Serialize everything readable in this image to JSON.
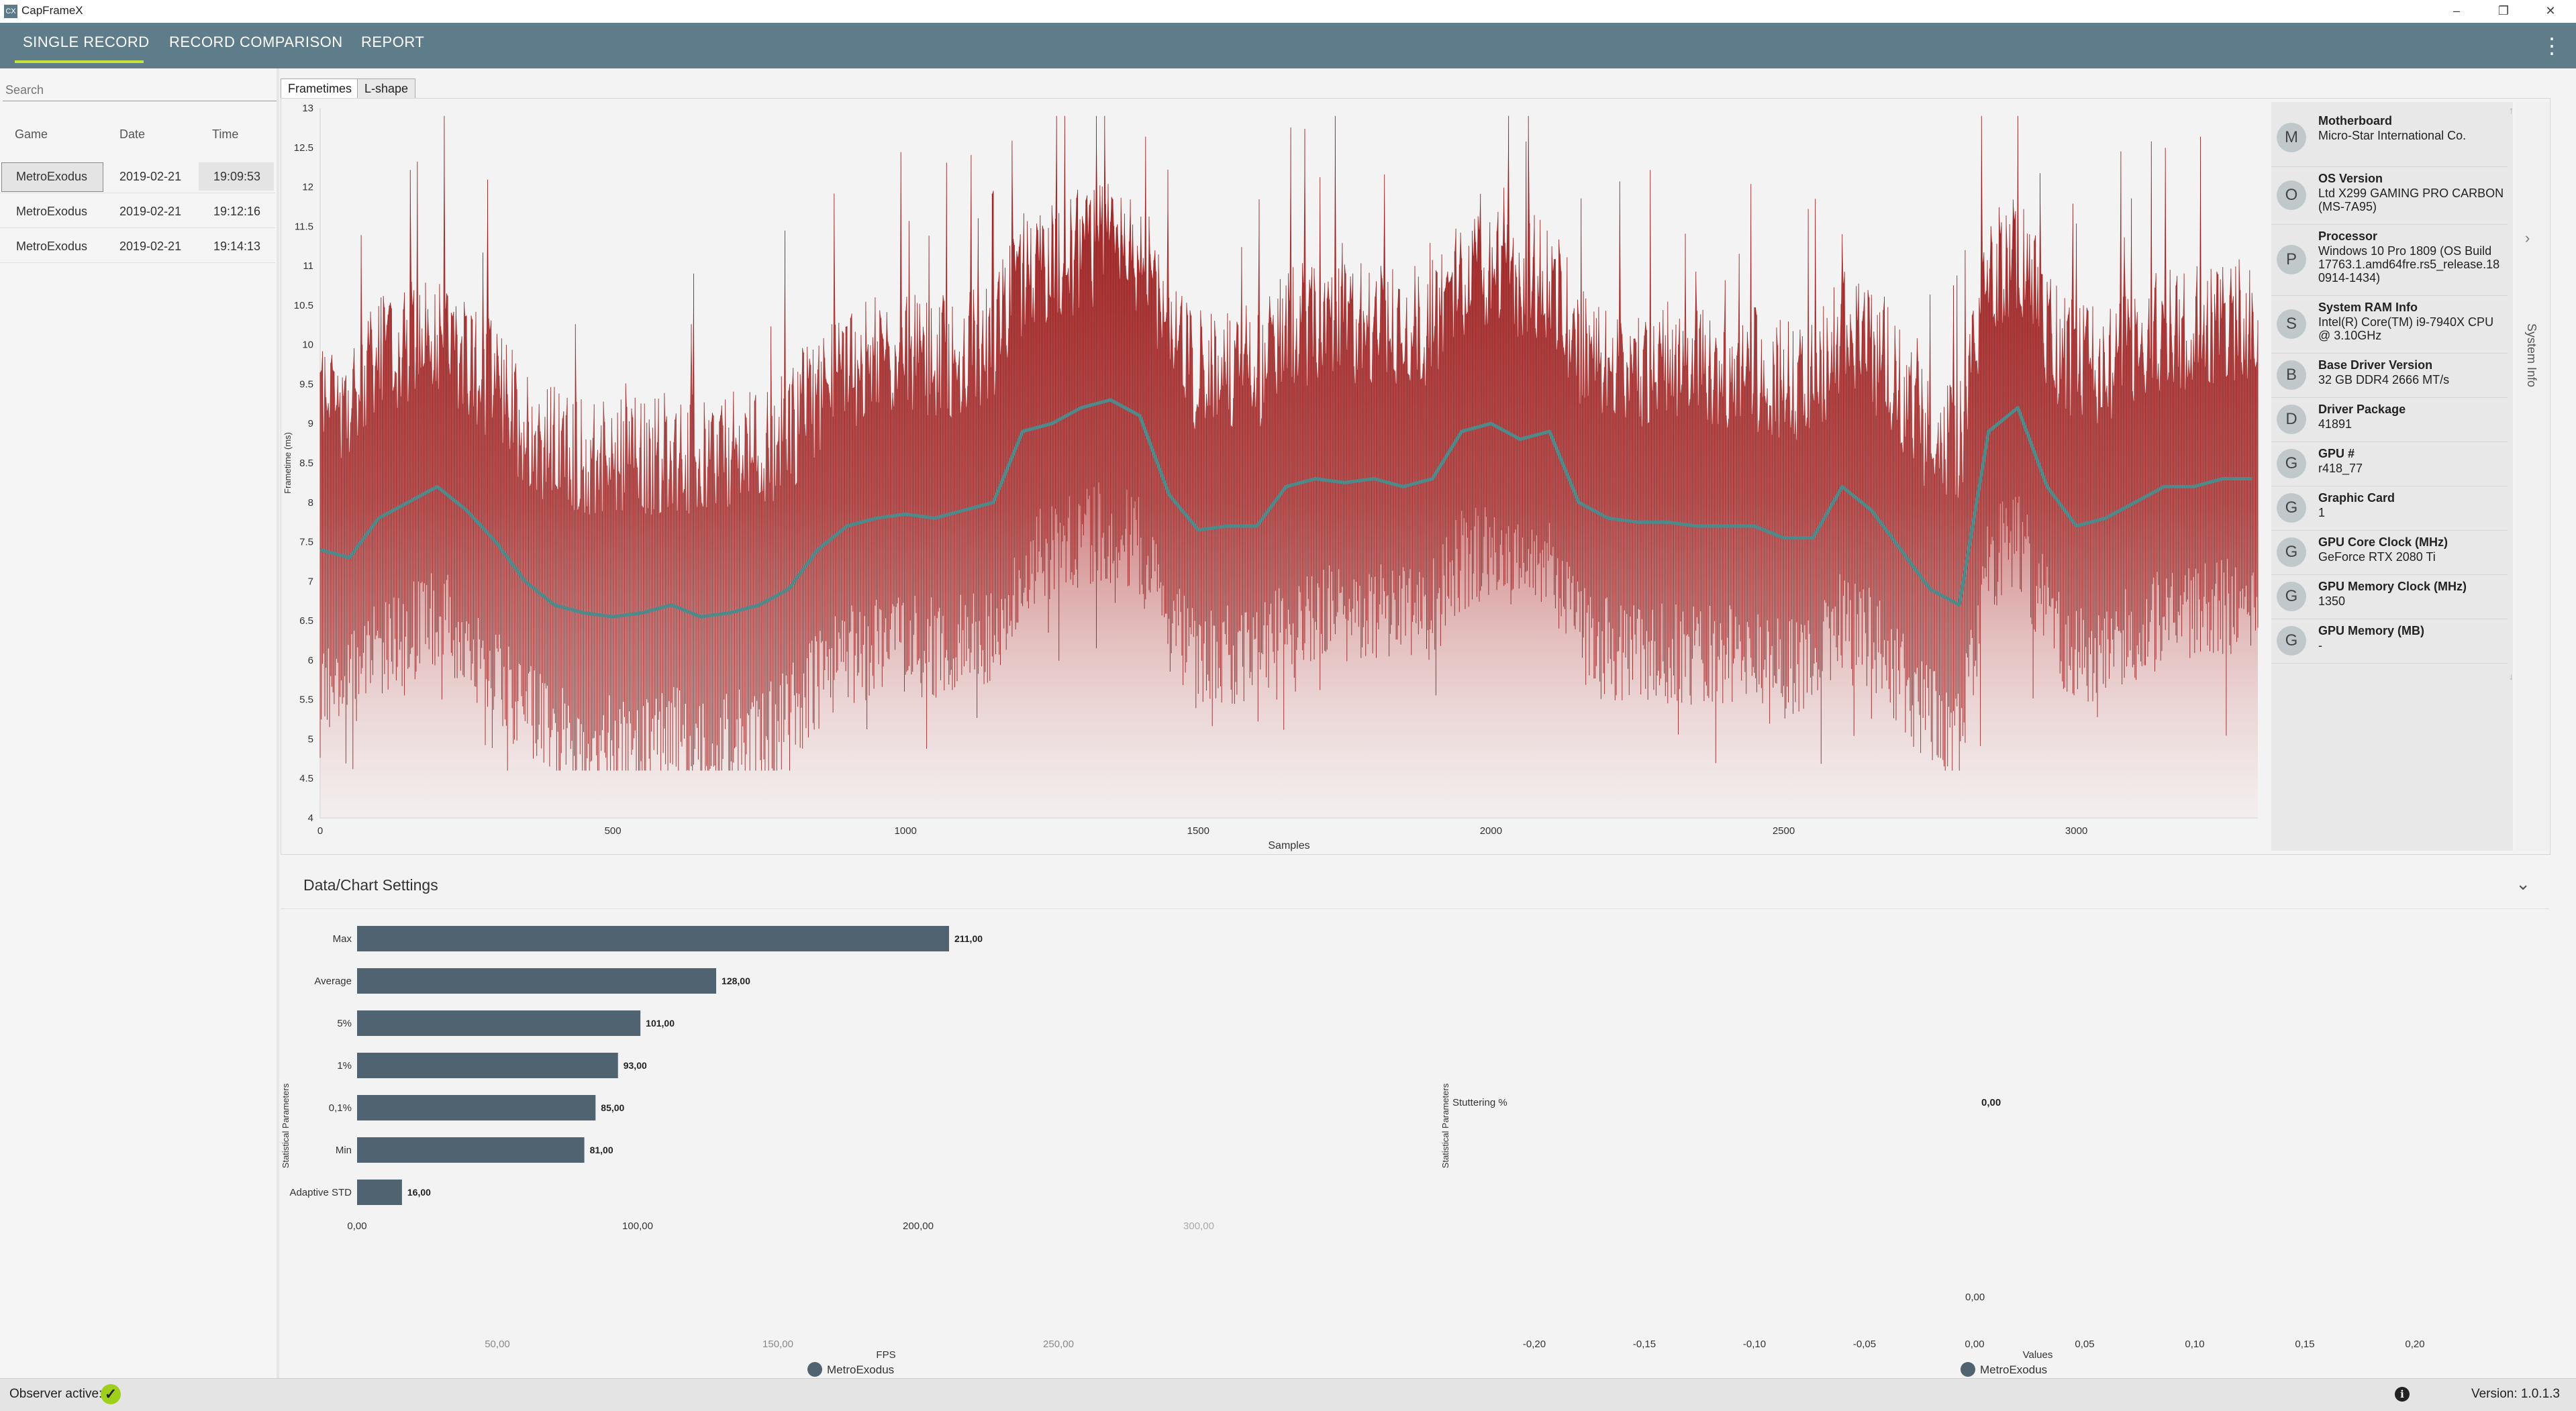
{
  "app": {
    "title": "CapFrameX",
    "logo": "CX"
  },
  "window_controls": {
    "minimize": "–",
    "restore": "❐",
    "close": "✕"
  },
  "nav": {
    "tabs": [
      "SINGLE RECORD",
      "RECORD COMPARISON",
      "REPORT"
    ],
    "active": "SINGLE RECORD"
  },
  "search": {
    "placeholder": "Search",
    "value": ""
  },
  "records": {
    "headers": [
      "Game",
      "Date",
      "Time"
    ],
    "rows": [
      {
        "game": "MetroExodus",
        "date": "2019-02-21",
        "time": "19:09:53",
        "selected": true
      },
      {
        "game": "MetroExodus",
        "date": "2019-02-21",
        "time": "19:12:16",
        "selected": false
      },
      {
        "game": "MetroExodus",
        "date": "2019-02-21",
        "time": "19:14:13",
        "selected": false
      }
    ]
  },
  "chart_tabs": [
    "Frametimes",
    "L-shape"
  ],
  "system_info": {
    "side_label": "System Info",
    "items": [
      {
        "letter": "M",
        "title": "Motherboard",
        "value": "Micro-Star International Co."
      },
      {
        "letter": "O",
        "title": "OS Version",
        "value": "Ltd X299 GAMING PRO CARBON (MS-7A95)"
      },
      {
        "letter": "P",
        "title": "Processor",
        "value": "Windows 10 Pro 1809 (OS Build 17763.1.amd64fre.rs5_release.18 0914-1434)"
      },
      {
        "letter": "S",
        "title": "System RAM Info",
        "value": "Intel(R) Core(TM) i9-7940X CPU @ 3.10GHz"
      },
      {
        "letter": "B",
        "title": "Base Driver Version",
        "value": "32 GB DDR4 2666 MT/s"
      },
      {
        "letter": "D",
        "title": "Driver Package",
        "value": "41891"
      },
      {
        "letter": "G",
        "title": "GPU #",
        "value": "r418_77"
      },
      {
        "letter": "G",
        "title": "Graphic Card",
        "value": "1"
      },
      {
        "letter": "G",
        "title": "GPU Core Clock (MHz)",
        "value": "GeForce RTX 2080 Ti"
      },
      {
        "letter": "G",
        "title": "GPU Memory Clock (MHz)",
        "value": "1350"
      },
      {
        "letter": "G",
        "title": "GPU Memory (MB)",
        "value": "-"
      }
    ]
  },
  "settings_header": "Data/Chart Settings",
  "status": {
    "observer": "Observer active:",
    "version": "Version: 1.0.1.3"
  },
  "colors": {
    "nav": "#5f7c8b",
    "accent": "#c7e33a",
    "frametime": "#8b0f0f",
    "moving_avg": "#4f8a8b",
    "bar": "#4f6370"
  },
  "chart_data": [
    {
      "type": "line",
      "xlabel": "Samples",
      "ylabel": "Frametime (ms)",
      "xlim": [
        0,
        3310
      ],
      "ylim": [
        4,
        13
      ],
      "xticks": [
        0,
        500,
        1000,
        1500,
        2000,
        2500,
        3000
      ],
      "yticks": [
        4,
        4.5,
        5,
        5.5,
        6,
        6.5,
        7,
        7.5,
        8,
        8.5,
        9,
        9.5,
        10,
        10.5,
        11,
        11.5,
        12,
        12.5,
        13
      ],
      "series": [
        {
          "role": "moving average",
          "x": [
            0,
            50,
            100,
            150,
            200,
            250,
            300,
            350,
            400,
            450,
            500,
            550,
            600,
            650,
            700,
            750,
            800,
            850,
            900,
            950,
            1000,
            1050,
            1100,
            1150,
            1200,
            1250,
            1300,
            1350,
            1400,
            1450,
            1500,
            1550,
            1600,
            1650,
            1700,
            1750,
            1800,
            1850,
            1900,
            1950,
            2000,
            2050,
            2100,
            2150,
            2200,
            2250,
            2300,
            2350,
            2400,
            2450,
            2500,
            2550,
            2600,
            2650,
            2700,
            2750,
            2800,
            2850,
            2900,
            2950,
            3000,
            3050,
            3100,
            3150,
            3200,
            3250,
            3300
          ],
          "y": [
            7.4,
            7.3,
            7.8,
            8.0,
            8.2,
            7.9,
            7.5,
            7.0,
            6.7,
            6.6,
            6.55,
            6.6,
            6.7,
            6.55,
            6.6,
            6.7,
            6.9,
            7.4,
            7.7,
            7.8,
            7.85,
            7.8,
            7.9,
            8.0,
            8.9,
            9.0,
            9.2,
            9.3,
            9.1,
            8.1,
            7.65,
            7.7,
            7.7,
            8.2,
            8.3,
            8.25,
            8.3,
            8.2,
            8.3,
            8.9,
            9.0,
            8.8,
            8.9,
            8.0,
            7.8,
            7.75,
            7.75,
            7.7,
            7.7,
            7.7,
            7.55,
            7.55,
            8.2,
            7.9,
            7.4,
            6.9,
            6.7,
            8.9,
            9.2,
            8.2,
            7.7,
            7.8,
            8.0,
            8.2,
            8.2,
            8.3,
            8.3
          ]
        }
      ]
    },
    {
      "type": "bar",
      "orientation": "horizontal",
      "ylabel": "Statistical Parameters",
      "xlabel": "FPS",
      "categories": [
        "Max",
        "Average",
        "5%",
        "1%",
        "0,1%",
        "Min",
        "Adaptive STD"
      ],
      "values": [
        211,
        128,
        101,
        93,
        85,
        81,
        16
      ],
      "value_labels": [
        "211,00",
        "128,00",
        "101,00",
        "93,00",
        "85,00",
        "81,00",
        "16,00"
      ],
      "xticks_top": [
        "0,00",
        "100,00",
        "200,00",
        "300,00"
      ],
      "xticks_bottom": [
        "50,00",
        "150,00",
        "250,00"
      ],
      "legend": [
        "MetroExodus"
      ]
    },
    {
      "type": "bar",
      "orientation": "horizontal",
      "ylabel": "Statistical Parameters",
      "xlabel": "Values",
      "categories": [
        "Stuttering %"
      ],
      "values": [
        0
      ],
      "value_labels": [
        "0,00"
      ],
      "extra_label": "0,00",
      "xticks": [
        "-0,20",
        "-0,15",
        "-0,10",
        "-0,05",
        "0,00",
        "0,05",
        "0,10",
        "0,15",
        "0,20"
      ],
      "legend": [
        "MetroExodus"
      ]
    }
  ]
}
